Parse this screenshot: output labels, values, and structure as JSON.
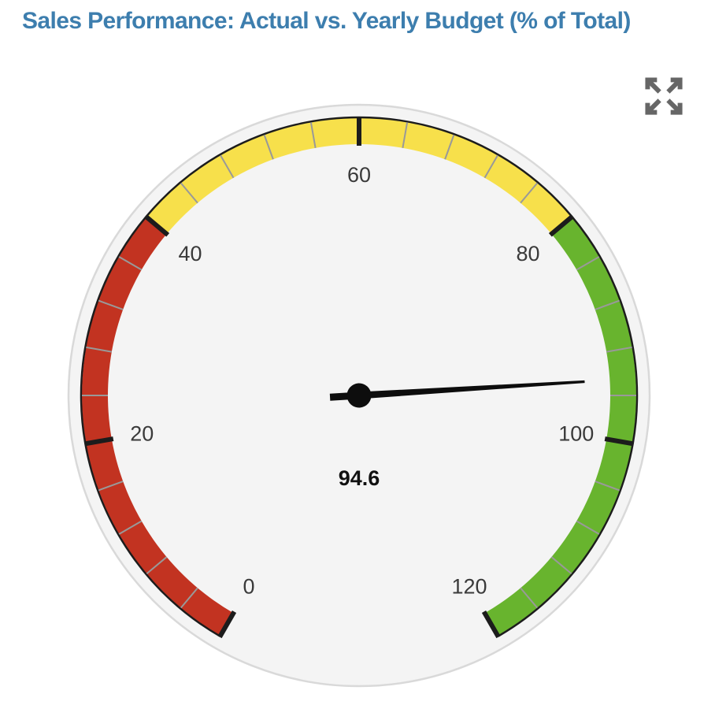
{
  "header": {
    "title": "Sales Performance: Actual vs. Yearly Budget (% of Total)"
  },
  "controls": {
    "expand_icon": "expand-arrows-icon"
  },
  "colors": {
    "title": "#3d7eae",
    "icon": "#666666",
    "face": "#f4f4f4",
    "face_border": "#d9d9d9",
    "tick_minor": "#999999",
    "tick_major": "#1c1c1c",
    "needle": "#0d0d0d",
    "axis_label": "#3a3a3a",
    "value_label": "#111111"
  },
  "chart_data": {
    "type": "gauge",
    "title": "Sales Performance: Actual vs. Yearly Budget (% of Total)",
    "value": 94.6,
    "value_label": "94.6",
    "min": 0,
    "max": 120,
    "start_angle": 240,
    "end_angle": -60,
    "major_tick_interval": 20,
    "minor_tick_interval": 4,
    "tick_labels": [
      0,
      20,
      40,
      60,
      80,
      100,
      120
    ],
    "bands": [
      {
        "from": 0,
        "to": 40,
        "color": "#c23321",
        "label": "red"
      },
      {
        "from": 40,
        "to": 80,
        "color": "#f7e04b",
        "label": "yellow"
      },
      {
        "from": 80,
        "to": 120,
        "color": "#68b42e",
        "label": "green"
      }
    ],
    "legend": "none",
    "grid": false
  }
}
